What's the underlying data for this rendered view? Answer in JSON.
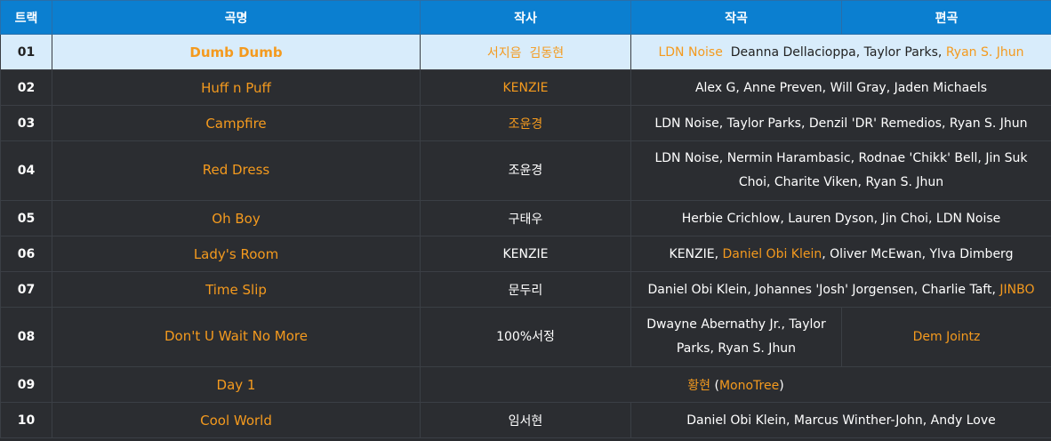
{
  "headers": {
    "track": "트랙",
    "title": "곡명",
    "lyrics": "작사",
    "composition": "작곡",
    "arrangement": "편곡"
  },
  "rows": [
    {
      "num": "01",
      "title": "Dumb Dumb",
      "lyrics_a": "서지음",
      "lyrics_b": "김동현",
      "comp_a": "LDN Noise",
      "comp_b": "Deanna Dellacioppa, Taylor Parks,",
      "comp_c": "Ryan S. Jhun"
    },
    {
      "num": "02",
      "title": "Huff n Puff",
      "lyrics": "KENZIE",
      "credits": "Alex G, Anne Preven, Will Gray, Jaden Michaels"
    },
    {
      "num": "03",
      "title": "Campfire",
      "lyrics": "조윤경",
      "credits": "LDN Noise, Taylor Parks, Denzil 'DR' Remedios, Ryan S. Jhun"
    },
    {
      "num": "04",
      "title": "Red Dress",
      "lyrics": "조윤경",
      "credits_l1": "LDN Noise, Nermin Harambasic, Rodnae 'Chikk' Bell, Jin Suk",
      "credits_l2": "Choi, Charite Viken, Ryan S. Jhun"
    },
    {
      "num": "05",
      "title": "Oh Boy",
      "lyrics": "구태우",
      "credits": "Herbie Crichlow, Lauren Dyson, Jin Choi, LDN Noise"
    },
    {
      "num": "06",
      "title": "Lady's Room",
      "lyrics": "KENZIE",
      "credits_a": "KENZIE,",
      "credits_b": "Daniel Obi Klein",
      "credits_c": ", Oliver McEwan, Ylva Dimberg"
    },
    {
      "num": "07",
      "title": "Time Slip",
      "lyrics": "문두리",
      "credits_a": "Daniel Obi Klein, Johannes 'Josh' Jorgensen, Charlie Taft,",
      "credits_b": "JINBO"
    },
    {
      "num": "08",
      "title": "Don't U Wait No More",
      "lyrics": "100%서정",
      "comp_l1": "Dwayne Abernathy Jr., Taylor",
      "comp_l2": "Parks, Ryan S. Jhun",
      "arr": "Dem Jointz"
    },
    {
      "num": "09",
      "title": "Day 1",
      "credits_a": "황현",
      "credits_b": "(",
      "credits_c": "MonoTree",
      "credits_d": ")"
    },
    {
      "num": "10",
      "title": "Cool World",
      "lyrics": "임서현",
      "credits": "Daniel Obi Klein, Marcus Winther-John, Andy Love"
    }
  ],
  "colors": {
    "header": "#0b7fd0",
    "row": "#2b2d31",
    "highlight": "#d8ecfb",
    "link": "#f49a1e"
  }
}
